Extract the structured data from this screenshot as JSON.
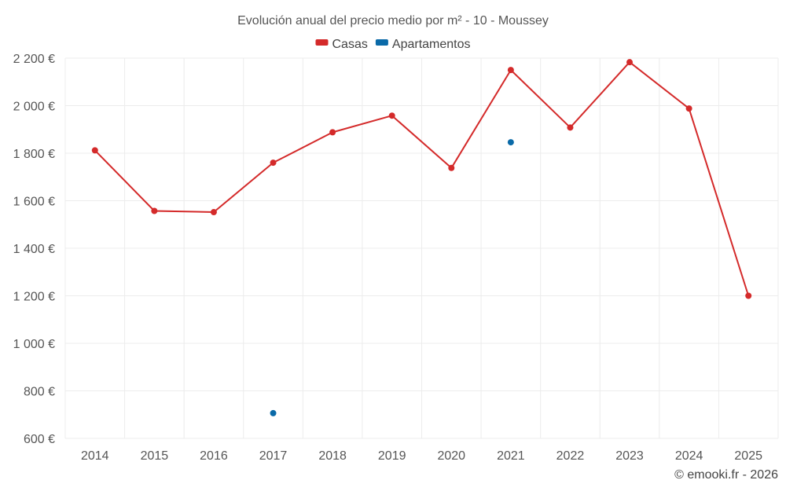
{
  "chart_data": {
    "type": "line",
    "title": "Evolución anual del precio medio por m² - 10 - Moussey",
    "xlabel": "",
    "ylabel": "",
    "categories": [
      "2014",
      "2015",
      "2016",
      "2017",
      "2018",
      "2019",
      "2020",
      "2021",
      "2022",
      "2023",
      "2024",
      "2025"
    ],
    "ylim": [
      600,
      2200
    ],
    "yticks": [
      600,
      800,
      1000,
      1200,
      1400,
      1600,
      1800,
      2000,
      2200
    ],
    "ytick_labels": [
      "600 €",
      "800 €",
      "1 000 €",
      "1 200 €",
      "1 400 €",
      "1 600 €",
      "1 800 €",
      "2 000 €",
      "2 200 €"
    ],
    "grid": true,
    "legend_position": "top-center",
    "series": [
      {
        "name": "Casas",
        "color": "#d42a2a",
        "style": "line-markers",
        "values": [
          1812,
          1557,
          1552,
          1760,
          1888,
          1958,
          1738,
          2150,
          1908,
          2183,
          1988,
          1200
        ]
      },
      {
        "name": "Apartamentos",
        "color": "#0a6aa8",
        "style": "markers",
        "values": [
          null,
          null,
          null,
          706,
          null,
          null,
          null,
          1846,
          null,
          null,
          null,
          null
        ]
      }
    ]
  },
  "credit": "© emooki.fr - 2026"
}
